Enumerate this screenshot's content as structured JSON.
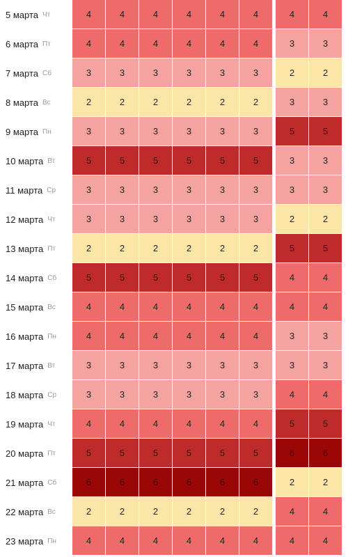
{
  "colors": {
    "level_2": "#fbe6a8",
    "level_3": "#f5a3a0",
    "level_4": "#ee6b6a",
    "level_5": "#bf2a2a",
    "level_6": "#9b0707"
  },
  "rows": [
    {
      "date": "5 марта",
      "day": "Чт",
      "values": [
        4,
        4,
        4,
        4,
        4,
        4,
        4,
        4
      ]
    },
    {
      "date": "6 марта",
      "day": "Пт",
      "values": [
        4,
        4,
        4,
        4,
        4,
        4,
        3,
        3
      ]
    },
    {
      "date": "7 марта",
      "day": "Сб",
      "values": [
        3,
        3,
        3,
        3,
        3,
        3,
        2,
        2
      ]
    },
    {
      "date": "8 марта",
      "day": "Вс",
      "values": [
        2,
        2,
        2,
        2,
        2,
        2,
        3,
        3
      ]
    },
    {
      "date": "9 марта",
      "day": "Пн",
      "values": [
        3,
        3,
        3,
        3,
        3,
        3,
        5,
        5
      ]
    },
    {
      "date": "10 марта",
      "day": "Вт",
      "values": [
        5,
        5,
        5,
        5,
        5,
        5,
        3,
        3
      ]
    },
    {
      "date": "11 марта",
      "day": "Ср",
      "values": [
        3,
        3,
        3,
        3,
        3,
        3,
        3,
        3
      ]
    },
    {
      "date": "12 марта",
      "day": "Чт",
      "values": [
        3,
        3,
        3,
        3,
        3,
        3,
        2,
        2
      ]
    },
    {
      "date": "13 марта",
      "day": "Пт",
      "values": [
        2,
        2,
        2,
        2,
        2,
        2,
        5,
        5
      ]
    },
    {
      "date": "14 марта",
      "day": "Сб",
      "values": [
        5,
        5,
        5,
        5,
        5,
        5,
        4,
        4
      ]
    },
    {
      "date": "15 марта",
      "day": "Вс",
      "values": [
        4,
        4,
        4,
        4,
        4,
        4,
        4,
        4
      ]
    },
    {
      "date": "16 марта",
      "day": "Пн",
      "values": [
        4,
        4,
        4,
        4,
        4,
        4,
        3,
        3
      ]
    },
    {
      "date": "17 марта",
      "day": "Вт",
      "values": [
        3,
        3,
        3,
        3,
        3,
        3,
        3,
        3
      ]
    },
    {
      "date": "18 марта",
      "day": "Ср",
      "values": [
        3,
        3,
        3,
        3,
        3,
        3,
        4,
        4
      ]
    },
    {
      "date": "19 марта",
      "day": "Чт",
      "values": [
        4,
        4,
        4,
        4,
        4,
        4,
        5,
        5
      ]
    },
    {
      "date": "20 марта",
      "day": "Пт",
      "values": [
        5,
        5,
        5,
        5,
        5,
        5,
        6,
        6
      ]
    },
    {
      "date": "21 марта",
      "day": "Сб",
      "values": [
        6,
        6,
        6,
        6,
        6,
        6,
        2,
        2
      ]
    },
    {
      "date": "22 марта",
      "day": "Вс",
      "values": [
        2,
        2,
        2,
        2,
        2,
        2,
        4,
        4
      ]
    },
    {
      "date": "23 марта",
      "day": "Пн",
      "values": [
        4,
        4,
        4,
        4,
        4,
        4,
        4,
        4
      ]
    }
  ]
}
